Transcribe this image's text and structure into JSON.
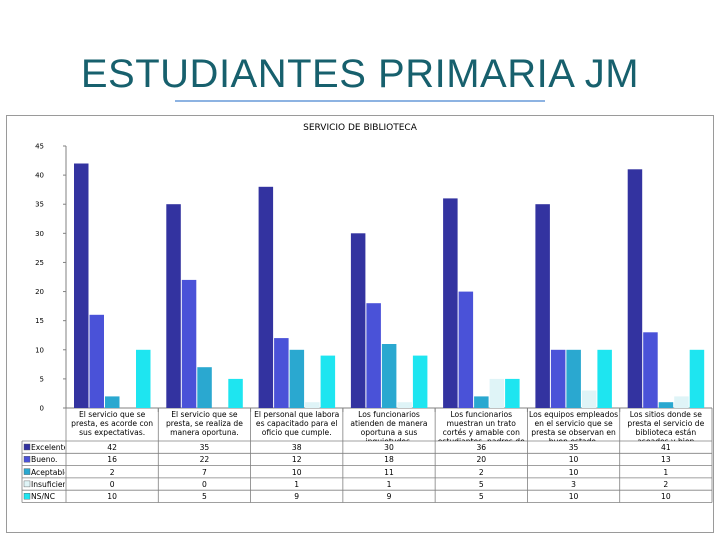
{
  "slide": {
    "title": "ESTUDIANTES PRIMARIA JM"
  },
  "chart_data": {
    "type": "bar",
    "title": "SERVICIO DE BIBLIOTECA",
    "ylim": [
      0,
      45
    ],
    "yticks": [
      0,
      5,
      10,
      15,
      20,
      25,
      30,
      35,
      40,
      45
    ],
    "grid": false,
    "legend": "table-left",
    "categories": [
      "El servicio que se presta, es acorde con sus expectativas.",
      "El servicio que se presta, se realiza de manera oportuna.",
      "El personal que labora es capacitado para el oficio que cumple.",
      "Los funcionarios atienden de manera oportuna a sus inquietudes.",
      "Los funcionarios muestran un trato cortés y amable con estudiantes, padres de familia o acudientes.",
      "Los equipos empleados en el servicio que se presta se observan en buen estado.",
      "Los sitios donde se presta el servicio de biblioteca están aseados y bien presentados."
    ],
    "series": [
      {
        "name": "Excelente.",
        "color": "#3333a0",
        "values": [
          42,
          35,
          38,
          30,
          36,
          35,
          41
        ]
      },
      {
        "name": "Bueno.",
        "color": "#4a52d8",
        "values": [
          16,
          22,
          12,
          18,
          20,
          10,
          13
        ]
      },
      {
        "name": "Aceptable.",
        "color": "#2aa8d0",
        "values": [
          2,
          7,
          10,
          11,
          2,
          10,
          1
        ]
      },
      {
        "name": "Insuficiente.",
        "color": "#dff4f7",
        "values": [
          0,
          0,
          1,
          1,
          5,
          3,
          2
        ]
      },
      {
        "name": "NS/NC",
        "color": "#1ee5f0",
        "values": [
          10,
          5,
          9,
          9,
          5,
          10,
          10
        ]
      }
    ]
  }
}
